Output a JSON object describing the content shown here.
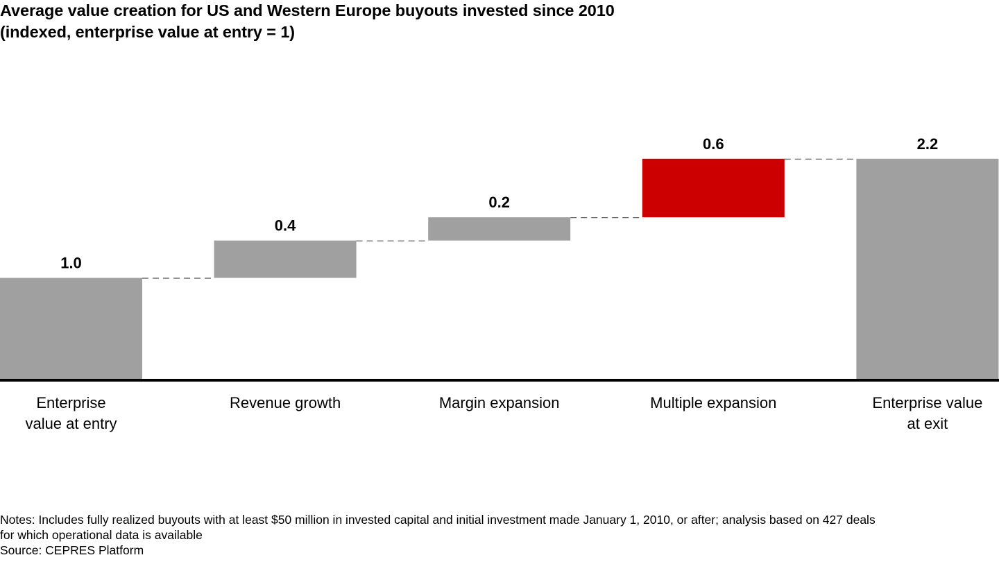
{
  "title": {
    "line1": "Average value creation for US and Western Europe buyouts invested since 2010",
    "line2": "(indexed, enterprise value at entry = 1)"
  },
  "notes": {
    "line1": "Notes: Includes fully realized buyouts with at least $50 million in invested capital and initial investment made January 1, 2010, or after; analysis based on 427 deals",
    "line2": "for which operational data is available",
    "source": "Source: CEPRES Platform"
  },
  "colors": {
    "total_bar": "#a0a0a0",
    "step_bar": "#a0a0a0",
    "highlight_bar": "#cc0000",
    "axis": "#000000",
    "connector": "#555555"
  },
  "chart_data": {
    "type": "bar",
    "subtype": "waterfall",
    "title": "Average value creation for US and Western Europe buyouts invested since 2010 (indexed, enterprise value at entry = 1)",
    "xlabel": "",
    "ylabel": "",
    "ylim": [
      0,
      2.2
    ],
    "grid": false,
    "legend": "none",
    "categories": [
      [
        "Enterprise",
        "value at entry"
      ],
      [
        "Revenue growth"
      ],
      [
        "Margin expansion"
      ],
      [
        "Multiple expansion"
      ],
      [
        "Enterprise value",
        "at exit"
      ]
    ],
    "bars": [
      {
        "kind": "total",
        "label": "1.0",
        "value": 1.0,
        "start": 0.0,
        "end": 1.0,
        "highlight": false
      },
      {
        "kind": "step",
        "label": "0.4",
        "value": 0.4,
        "start": 1.0,
        "end": 1.37,
        "highlight": false
      },
      {
        "kind": "step",
        "label": "0.2",
        "value": 0.2,
        "start": 1.37,
        "end": 1.6,
        "highlight": false
      },
      {
        "kind": "step",
        "label": "0.6",
        "value": 0.6,
        "start": 1.6,
        "end": 2.18,
        "highlight": true
      },
      {
        "kind": "total",
        "label": "2.2",
        "value": 2.2,
        "start": 0.0,
        "end": 2.18,
        "highlight": false
      }
    ]
  }
}
